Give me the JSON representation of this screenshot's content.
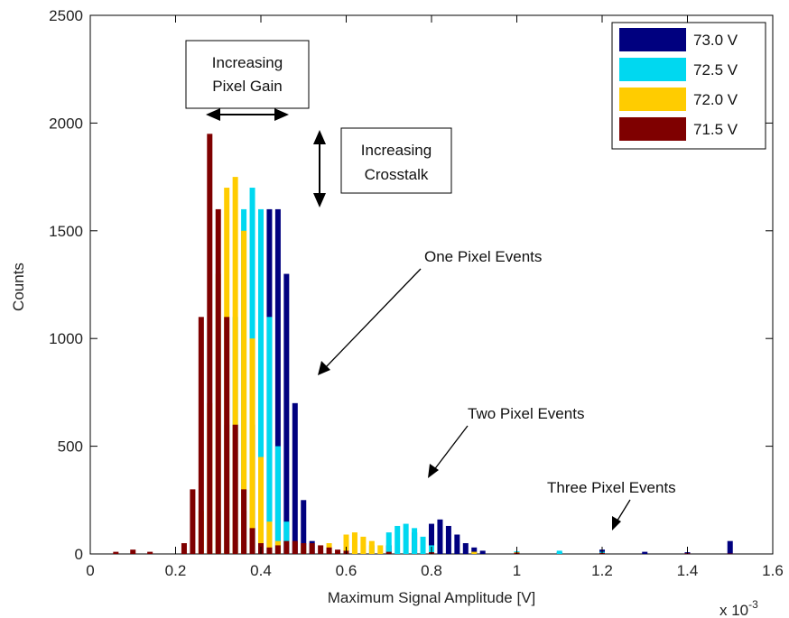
{
  "chart_data": {
    "type": "bar",
    "xlabel": "Maximum Signal Amplitude [V]",
    "ylabel": "Counts",
    "x_multiplier": "x 10",
    "x_multiplier_exponent": "-3",
    "xlim": [
      0,
      1.6
    ],
    "ylim": [
      0,
      2500
    ],
    "xticks": [
      0,
      0.2,
      0.4,
      0.6,
      0.8,
      1,
      1.2,
      1.4,
      1.6
    ],
    "xtick_labels": [
      "0",
      "0.2",
      "0.4",
      "0.6",
      "0.8",
      "1",
      "1.2",
      "1.4",
      "1.6"
    ],
    "yticks": [
      0,
      500,
      1000,
      1500,
      2000,
      2500
    ],
    "ytick_labels": [
      "0",
      "500",
      "1000",
      "1500",
      "2000",
      "2500"
    ],
    "grid": false,
    "legend_position": "top-right",
    "series": [
      {
        "name": "73.0 V",
        "color": "#00007f",
        "x": [
          0.36,
          0.38,
          0.4,
          0.42,
          0.44,
          0.46,
          0.48,
          0.5,
          0.52,
          0.7,
          0.76,
          0.8,
          0.82,
          0.84,
          0.86,
          0.88,
          0.9,
          0.92,
          1.0,
          1.1,
          1.2,
          1.3,
          1.4,
          1.5
        ],
        "values": [
          200,
          600,
          1100,
          1600,
          1600,
          1300,
          700,
          250,
          60,
          40,
          100,
          140,
          160,
          130,
          90,
          50,
          30,
          15,
          10,
          8,
          20,
          10,
          8,
          60
        ]
      },
      {
        "name": "72.5 V",
        "color": "#00d8f0",
        "x": [
          0.3,
          0.32,
          0.34,
          0.36,
          0.38,
          0.4,
          0.42,
          0.44,
          0.46,
          0.5,
          0.66,
          0.7,
          0.72,
          0.74,
          0.76,
          0.78,
          0.8,
          1.0,
          1.1,
          1.2
        ],
        "values": [
          200,
          600,
          1100,
          1600,
          1700,
          1600,
          1100,
          500,
          150,
          40,
          40,
          100,
          130,
          140,
          120,
          80,
          40,
          12,
          15,
          10
        ]
      },
      {
        "name": "72.0 V",
        "color": "#ffcc00",
        "x": [
          0.26,
          0.28,
          0.3,
          0.32,
          0.34,
          0.36,
          0.38,
          0.4,
          0.42,
          0.44,
          0.5,
          0.56,
          0.6,
          0.62,
          0.64,
          0.66,
          0.68,
          0.9,
          1.0
        ],
        "values": [
          200,
          700,
          1300,
          1700,
          1750,
          1500,
          1000,
          450,
          150,
          60,
          40,
          50,
          90,
          100,
          80,
          60,
          40,
          10,
          8
        ]
      },
      {
        "name": "71.5 V",
        "color": "#7f0000",
        "x": [
          0.06,
          0.1,
          0.14,
          0.22,
          0.24,
          0.26,
          0.28,
          0.3,
          0.32,
          0.34,
          0.36,
          0.38,
          0.4,
          0.42,
          0.44,
          0.46,
          0.48,
          0.5,
          0.52,
          0.54,
          0.56,
          0.58,
          0.6,
          0.7,
          0.8,
          1.0,
          1.2,
          1.4,
          1.5
        ],
        "values": [
          10,
          20,
          10,
          50,
          300,
          1100,
          1950,
          1600,
          1100,
          600,
          300,
          120,
          50,
          30,
          40,
          60,
          60,
          50,
          50,
          40,
          30,
          20,
          15,
          10,
          8,
          6,
          5,
          3,
          2
        ]
      }
    ],
    "annotations": [
      {
        "text": "One Pixel Events"
      },
      {
        "text": "Two Pixel Events"
      },
      {
        "text": "Three Pixel Events"
      },
      {
        "text_line1": "Increasing",
        "text_line2": "Pixel Gain"
      },
      {
        "text_line1": "Increasing",
        "text_line2": "Crosstalk"
      }
    ]
  }
}
